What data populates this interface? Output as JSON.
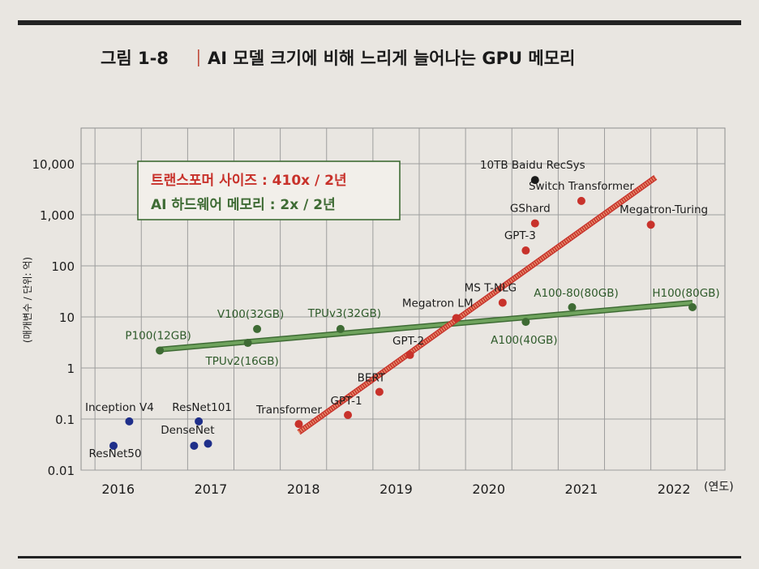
{
  "figure": {
    "number": "그림 1-8",
    "title": "AI 모델 크기에 비해 느리게 늘어나는 GPU 메모리"
  },
  "colors": {
    "transformer": "#c8322b",
    "hardware": "#3e6b34",
    "cnn": "#1f2f8a",
    "baidu": "#1a1a1a",
    "legend_border": "#3e6b34",
    "transformer_line": "#e58d6c",
    "hardware_line": "#6fa35d"
  },
  "chart_data": {
    "type": "scatter",
    "y_scale": "log",
    "ylabel": "(매개변수 / 단위: 억)",
    "xlabel": "(연도)",
    "x_ticks": [
      "2016",
      "2017",
      "2018",
      "2019",
      "2020",
      "2021",
      "2022"
    ],
    "y_ticks": [
      "0.01",
      "0.1",
      "1",
      "10",
      "100",
      "1,000",
      "10,000"
    ],
    "xlim": [
      2015.6,
      2022.55
    ],
    "ylim": [
      0.01,
      50000
    ],
    "grid": true,
    "legend": {
      "position": "top-left",
      "items": [
        {
          "text": "트랜스포머 사이즈 : 410x / 2년",
          "series": "transformer"
        },
        {
          "text": "AI 하드웨어 메모리 : 2x / 2년",
          "series": "hardware"
        }
      ]
    },
    "series": [
      {
        "key": "cnn",
        "points": [
          {
            "label": "ResNet50",
            "x": 2015.95,
            "y": 0.03
          },
          {
            "label": "Inception V4",
            "x": 2016.12,
            "y": 0.09
          },
          {
            "label": "ResNet101",
            "x": 2016.87,
            "y": 0.09
          },
          {
            "label": "DenseNet",
            "x": 2016.82,
            "y": 0.03
          },
          {
            "label": "",
            "x": 2016.97,
            "y": 0.033
          }
        ]
      },
      {
        "key": "hardware",
        "trend": [
          [
            2016.45,
            2.3
          ],
          [
            2022.2,
            19
          ]
        ],
        "points": [
          {
            "label": "P100(12GB)",
            "x": 2016.45,
            "y": 2.2
          },
          {
            "label": "V100(32GB)",
            "x": 2017.5,
            "y": 5.8
          },
          {
            "label": "TPUv2(16GB)",
            "x": 2017.4,
            "y": 3.1
          },
          {
            "label": "TPUv3(32GB)",
            "x": 2018.4,
            "y": 5.8
          },
          {
            "label": "A100(40GB)",
            "x": 2020.4,
            "y": 8
          },
          {
            "label": "A100-80(80GB)",
            "x": 2020.9,
            "y": 15.5
          },
          {
            "label": "H100(80GB)",
            "x": 2022.2,
            "y": 15.5
          }
        ]
      },
      {
        "key": "transformer",
        "trend": [
          [
            2017.95,
            0.055
          ],
          [
            2021.8,
            5400
          ]
        ],
        "points": [
          {
            "label": "Transformer",
            "x": 2017.95,
            "y": 0.08
          },
          {
            "label": "GPT-1",
            "x": 2018.48,
            "y": 0.12
          },
          {
            "label": "BERT",
            "x": 2018.82,
            "y": 0.34
          },
          {
            "label": "GPT-2",
            "x": 2019.15,
            "y": 1.8
          },
          {
            "label": "Megatron LM",
            "x": 2019.65,
            "y": 9.5
          },
          {
            "label": "MS T-NLG",
            "x": 2020.15,
            "y": 19
          },
          {
            "label": "GPT-3",
            "x": 2020.4,
            "y": 200
          },
          {
            "label": "GShard",
            "x": 2020.5,
            "y": 680
          },
          {
            "label": "Switch Transformer",
            "x": 2021.0,
            "y": 1870
          },
          {
            "label": "Megatron-Turing",
            "x": 2021.75,
            "y": 640
          }
        ]
      },
      {
        "key": "baidu",
        "points": [
          {
            "label": "10TB Baidu RecSys",
            "x": 2020.5,
            "y": 4800
          }
        ]
      }
    ]
  }
}
